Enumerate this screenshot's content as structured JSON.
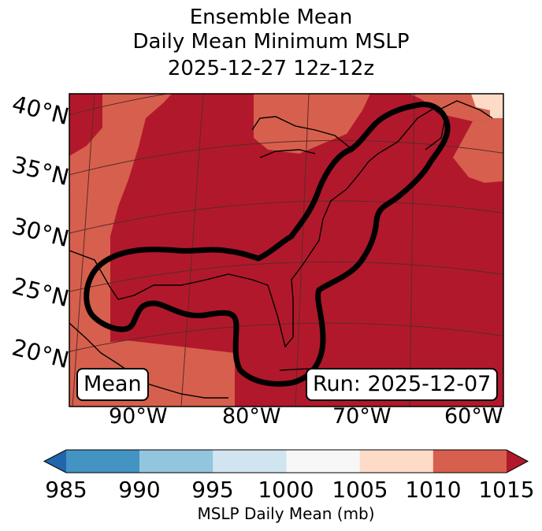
{
  "title": {
    "line1": "Ensemble Mean",
    "line2": "Daily Mean Minimum MSLP",
    "line3": "2025-12-27 12z-12z"
  },
  "map": {
    "lat_labels": [
      "40°N",
      "35°N",
      "30°N",
      "25°N",
      "20°N"
    ],
    "lon_labels": [
      "90°W",
      "80°W",
      "70°W",
      "60°W"
    ],
    "badge_left": "Mean",
    "badge_right": "Run: 2025-12-07",
    "fill_colors": {
      "bin_1005_1010": "#fddbc7",
      "bin_1010_1015": "#d6604d",
      "bin_1015_plus": "#b2182b"
    },
    "contour_color": "#000000",
    "coast_color": "#000000",
    "grid_color": "#5a2a2a"
  },
  "colorbar": {
    "label": "MSLP Daily Mean (mb)",
    "ticks": [
      "985",
      "990",
      "995",
      "1000",
      "1005",
      "1010",
      "1015"
    ],
    "bins": [
      {
        "from": 985,
        "to": 990,
        "color": "#4393c3"
      },
      {
        "from": 990,
        "to": 995,
        "color": "#92c5de"
      },
      {
        "from": 995,
        "to": 1000,
        "color": "#d1e5f0"
      },
      {
        "from": 1000,
        "to": 1005,
        "color": "#f7f7f7"
      },
      {
        "from": 1005,
        "to": 1010,
        "color": "#fddbc7"
      },
      {
        "from": 1010,
        "to": 1015,
        "color": "#d6604d"
      }
    ],
    "under_color": "#2166ac",
    "over_color": "#b2182b"
  }
}
